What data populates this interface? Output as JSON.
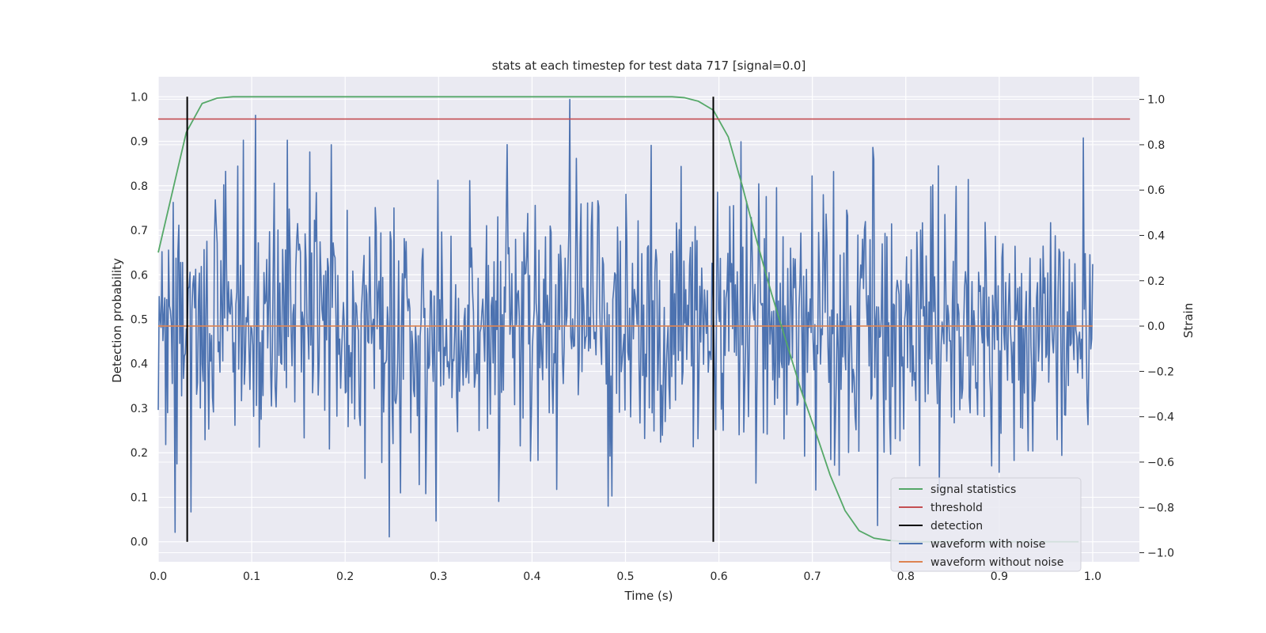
{
  "chart_data": {
    "type": "line",
    "title": "stats at each timestep for test data 717 [signal=0.0]",
    "xlabel": "Time (s)",
    "ylabel": "Detection probability",
    "y2label": "Strain",
    "xlim": [
      0.0,
      1.05
    ],
    "ylim": [
      -0.045,
      1.045
    ],
    "y2lim": [
      -1.04,
      1.1
    ],
    "xticks": [
      "0.0",
      "0.1",
      "0.2",
      "0.3",
      "0.4",
      "0.5",
      "0.6",
      "0.7",
      "0.8",
      "0.9",
      "1.0"
    ],
    "yticks": [
      "0.0",
      "0.1",
      "0.2",
      "0.3",
      "0.4",
      "0.5",
      "0.6",
      "0.7",
      "0.8",
      "0.9",
      "1.0"
    ],
    "y2ticks": [
      "−1.0",
      "−0.8",
      "−0.6",
      "−0.4",
      "−0.2",
      "0.0",
      "0.2",
      "0.4",
      "0.6",
      "0.8",
      "1.0"
    ],
    "grid": true,
    "legend_position": "lower-right",
    "colors": {
      "background": "#eaeaf2",
      "grid": "#ffffff",
      "signal_statistics": "#55a868",
      "threshold": "#c44e52",
      "detection": "#000000",
      "waveform_with_noise": "#4c72b0",
      "waveform_without_noise": "#dd8452"
    },
    "series": [
      {
        "name": "signal statistics",
        "axis": "left",
        "x": [
          0.0,
          0.03,
          0.047,
          0.063,
          0.08,
          0.1,
          0.2,
          0.3,
          0.4,
          0.5,
          0.55,
          0.563,
          0.578,
          0.594,
          0.61,
          0.625,
          0.64,
          0.656,
          0.672,
          0.688,
          0.703,
          0.719,
          0.735,
          0.75,
          0.766,
          0.782,
          0.797,
          0.813,
          0.83,
          0.85,
          0.9,
          0.95,
          0.985
        ],
        "y": [
          0.65,
          0.92,
          0.985,
          0.997,
          1.0,
          1.0,
          1.0,
          1.0,
          1.0,
          1.0,
          1.0,
          0.998,
          0.99,
          0.97,
          0.91,
          0.8,
          0.68,
          0.56,
          0.45,
          0.34,
          0.25,
          0.15,
          0.07,
          0.025,
          0.008,
          0.003,
          0.001,
          0.0,
          0.0,
          0.0,
          0.0,
          0.0,
          0.0
        ]
      },
      {
        "name": "threshold",
        "axis": "left",
        "x": [
          0.0,
          1.04
        ],
        "y": [
          0.95,
          0.95
        ]
      },
      {
        "name": "detection",
        "axis": "left",
        "x_positions": [
          0.031,
          0.594
        ],
        "y_range": [
          0.0,
          1.0
        ]
      },
      {
        "name": "waveform with noise",
        "axis": "right",
        "x_range": [
          0.0,
          1.0
        ],
        "n_points": 1000,
        "notable_peaks": [
          {
            "x": 0.44,
            "y": 1.0
          },
          {
            "x": 0.104,
            "y": 0.93
          },
          {
            "x": 0.99,
            "y": 0.83
          },
          {
            "x": 0.247,
            "y": -0.93
          },
          {
            "x": 0.018,
            "y": -0.91
          },
          {
            "x": 0.297,
            "y": -0.86
          },
          {
            "x": 0.77,
            "y": -0.88
          },
          {
            "x": 0.447,
            "y": 0.74
          },
          {
            "x": 0.185,
            "y": 0.8
          },
          {
            "x": 0.485,
            "y": -0.75
          }
        ],
        "typical_amplitude": 0.3
      },
      {
        "name": "waveform without noise",
        "axis": "right",
        "x": [
          0.0,
          1.0
        ],
        "y": [
          0.0,
          0.0
        ]
      }
    ]
  }
}
